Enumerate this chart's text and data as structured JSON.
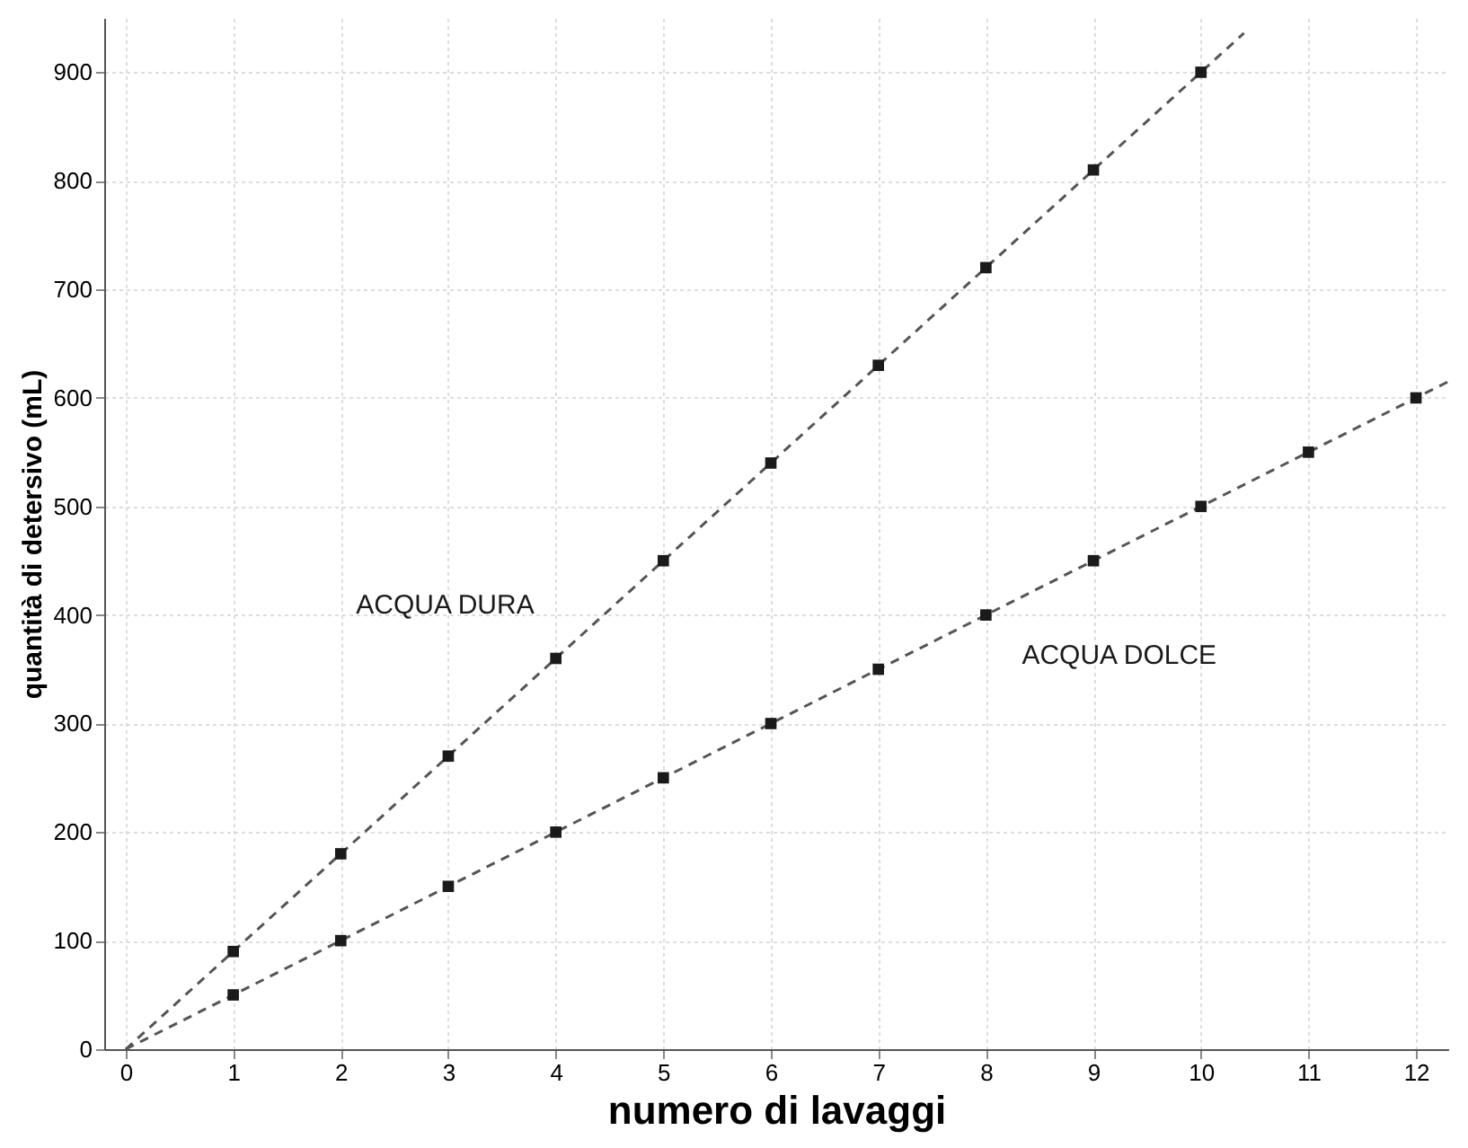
{
  "chart_data": {
    "type": "scatter",
    "xlabel": "numero di lavaggi",
    "ylabel": "quantità di detersivo (mL)",
    "xlim": [
      -0.2,
      12.3
    ],
    "ylim": [
      0,
      950
    ],
    "xticks": [
      0,
      1,
      2,
      3,
      4,
      5,
      6,
      7,
      8,
      9,
      10,
      11,
      12
    ],
    "yticks": [
      0,
      100,
      200,
      300,
      400,
      500,
      600,
      700,
      800,
      900
    ],
    "grid": true,
    "marker": "square",
    "series": [
      {
        "type": "line",
        "color": "#555555",
        "line_style": "dashed",
        "marker": "none",
        "x": [
          0,
          10.4
        ],
        "values": [
          0,
          936
        ]
      },
      {
        "type": "line",
        "color": "#555555",
        "line_style": "dashed",
        "marker": "none",
        "x": [
          0,
          12.3
        ],
        "values": [
          0,
          615
        ]
      },
      {
        "name": "ACQUA DURA",
        "color": "#1a1a1a",
        "x": [
          1,
          2,
          3,
          4,
          5,
          6,
          7,
          8,
          9,
          10
        ],
        "values": [
          90,
          180,
          270,
          360,
          450,
          540,
          630,
          720,
          810,
          900
        ]
      },
      {
        "name": "ACQUA DOLCE",
        "color": "#1a1a1a",
        "x": [
          1,
          2,
          3,
          4,
          5,
          6,
          7,
          8,
          9,
          10,
          11,
          12
        ],
        "values": [
          50,
          100,
          150,
          200,
          250,
          300,
          350,
          400,
          450,
          500,
          550,
          600
        ]
      }
    ]
  }
}
